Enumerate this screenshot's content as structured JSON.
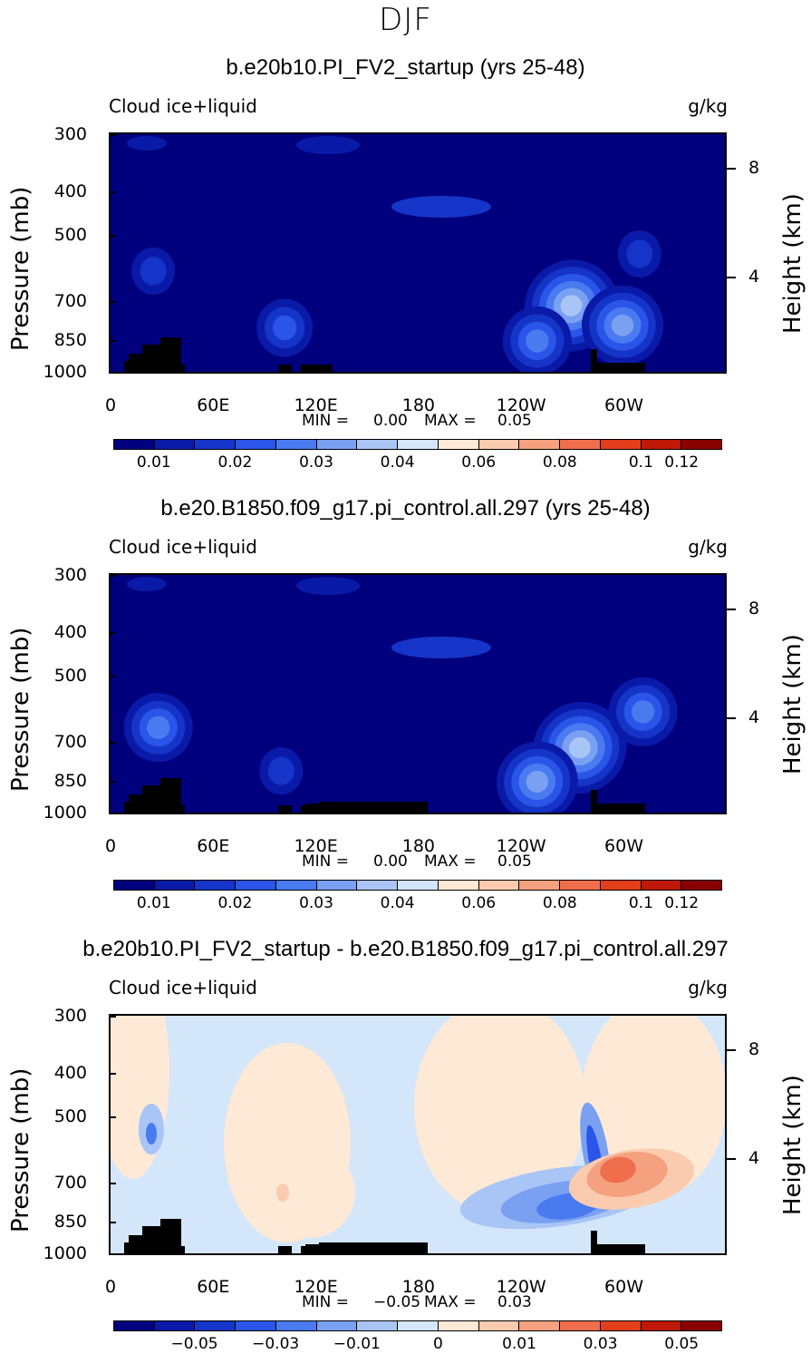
{
  "figure": {
    "season": "DJF"
  },
  "axes": {
    "variable": "Cloud ice+liquid",
    "units": "g/kg",
    "y_left_title": "Pressure (mb)",
    "y_right_title": "Height (km)",
    "y_ticks": [
      "300",
      "400",
      "500",
      "700",
      "850",
      "1000"
    ],
    "y_right_ticks": [
      "8",
      "4"
    ],
    "x_ticks": [
      "0",
      "60E",
      "120E",
      "180",
      "120W",
      "60W"
    ]
  },
  "colors": {
    "abs_scale": [
      "#00007f",
      "#0a1aa8",
      "#1535c8",
      "#2a55e8",
      "#4a7af0",
      "#7aa0f2",
      "#a8c5f5",
      "#d4e6fa",
      "#fde9d6",
      "#fbcbb0",
      "#f5a07e",
      "#ef6e4c",
      "#e23e1c",
      "#c01808",
      "#8a0000"
    ],
    "diff_scale": [
      "#00007f",
      "#0a1aa8",
      "#1535c8",
      "#2a55e8",
      "#4a7af0",
      "#7aa0f2",
      "#a8c5f5",
      "#d4e6fa",
      "#fde9d6",
      "#fbcbb0",
      "#f5a07e",
      "#ef6e4c",
      "#e23e1c",
      "#c01808",
      "#8a0000"
    ],
    "topography": "#000000"
  },
  "panels": [
    {
      "title": "b.e20b10.PI_FV2_startup (yrs 25-48)",
      "min_label": "MIN =",
      "min_value": "0.00",
      "max_label": "MAX =",
      "max_value": "0.05",
      "colorbar_labels": [
        "0.01",
        "0.02",
        "0.03",
        "0.04",
        "0.06",
        "0.08",
        "0.1",
        "0.12"
      ]
    },
    {
      "title": "b.e20.B1850.f09_g17.pi_control.all.297 (yrs 25-48)",
      "min_label": "MIN =",
      "min_value": "0.00",
      "max_label": "MAX =",
      "max_value": "0.05",
      "colorbar_labels": [
        "0.01",
        "0.02",
        "0.03",
        "0.04",
        "0.06",
        "0.08",
        "0.1",
        "0.12"
      ]
    },
    {
      "title": "b.e20b10.PI_FV2_startup - b.e20.B1850.f09_g17.pi_control.all.297",
      "min_label": "MIN =",
      "min_value": "−0.05",
      "max_label": "MAX =",
      "max_value": "0.03",
      "colorbar_labels": [
        "−0.05",
        "−0.03",
        "−0.01",
        "0",
        "0.01",
        "0.03",
        "0.05"
      ]
    }
  ],
  "chart_data": [
    {
      "type": "heatmap",
      "title": "b.e20b10.PI_FV2_startup (yrs 25-48)",
      "xlabel": "",
      "ylabel": "Pressure (mb)",
      "xlim": [
        0,
        360
      ],
      "ylim": [
        1000,
        300
      ],
      "y_scale": "log",
      "x": [
        0,
        60,
        120,
        180,
        240,
        300
      ],
      "y_levels": [
        300,
        400,
        500,
        700,
        850,
        1000
      ],
      "value_range": [
        0.0,
        0.05
      ],
      "features": [
        {
          "lon": 270,
          "p": 715,
          "value": 0.05
        },
        {
          "lon": 300,
          "p": 790,
          "value": 0.045
        },
        {
          "lon": 250,
          "p": 855,
          "value": 0.03
        },
        {
          "lon": 102,
          "p": 800,
          "value": 0.025
        },
        {
          "lon": 25,
          "p": 600,
          "value": 0.02
        },
        {
          "lon": 310,
          "p": 550,
          "value": 0.02
        }
      ]
    },
    {
      "type": "heatmap",
      "title": "b.e20.B1850.f09_g17.pi_control.all.297 (yrs 25-48)",
      "xlabel": "",
      "ylabel": "Pressure (mb)",
      "xlim": [
        0,
        360
      ],
      "ylim": [
        1000,
        300
      ],
      "y_scale": "log",
      "x": [
        0,
        60,
        120,
        180,
        240,
        300
      ],
      "y_levels": [
        300,
        400,
        500,
        700,
        850,
        1000
      ],
      "value_range": [
        0.0,
        0.05
      ],
      "features": [
        {
          "lon": 275,
          "p": 720,
          "value": 0.05
        },
        {
          "lon": 250,
          "p": 855,
          "value": 0.045
        },
        {
          "lon": 28,
          "p": 650,
          "value": 0.03
        },
        {
          "lon": 312,
          "p": 600,
          "value": 0.03
        },
        {
          "lon": 100,
          "p": 810,
          "value": 0.02
        }
      ]
    },
    {
      "type": "heatmap",
      "title": "b.e20b10.PI_FV2_startup - b.e20.B1850.f09_g17.pi_control.all.297",
      "xlabel": "",
      "ylabel": "Pressure (mb)",
      "xlim": [
        0,
        360
      ],
      "ylim": [
        1000,
        300
      ],
      "y_scale": "log",
      "x": [
        0,
        60,
        120,
        180,
        240,
        300
      ],
      "y_levels": [
        300,
        400,
        500,
        700,
        850,
        1000
      ],
      "value_range": [
        -0.05,
        0.03
      ],
      "features": [
        {
          "lon": 290,
          "p": 760,
          "value": 0.03
        },
        {
          "lon": 262,
          "p": 860,
          "value": -0.05
        },
        {
          "lon": 274,
          "p": 720,
          "value": -0.03
        },
        {
          "lon": 25,
          "p": 630,
          "value": -0.02
        },
        {
          "lon": 100,
          "p": 800,
          "value": 0.01
        }
      ]
    }
  ]
}
